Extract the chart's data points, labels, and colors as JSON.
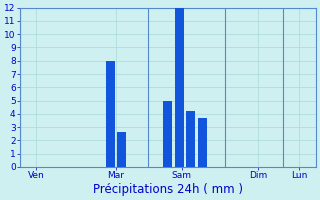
{
  "bar_positions": [
    5.5,
    6.2,
    9.0,
    9.7,
    10.4,
    11.1
  ],
  "bar_heights": [
    8.0,
    2.6,
    5.0,
    12.0,
    4.2,
    3.7
  ],
  "bar_color": "#1155dd",
  "bar_width": 0.55,
  "xlim": [
    0,
    18
  ],
  "ylim": [
    0,
    12
  ],
  "yticks": [
    0,
    1,
    2,
    3,
    4,
    5,
    6,
    7,
    8,
    9,
    10,
    11,
    12
  ],
  "xtick_positions": [
    1.0,
    5.85,
    9.85,
    14.5,
    17.0
  ],
  "xtick_labels": [
    "Ven",
    "Mar",
    "Sam",
    "Dim",
    "Lun"
  ],
  "xlabel": "Précipitations 24h ( mm )",
  "background_color": "#cff0f0",
  "grid_color": "#aad8d8",
  "spine_color": "#5588cc",
  "tick_color": "#0000cc",
  "label_color": "#0000cc",
  "xlabel_fontsize": 8.5,
  "tick_fontsize": 6.5,
  "figure_bg": "#cff0f0",
  "vlines": [
    0,
    7.8,
    12.5,
    16.0
  ],
  "day_sep_color": "#5588cc"
}
